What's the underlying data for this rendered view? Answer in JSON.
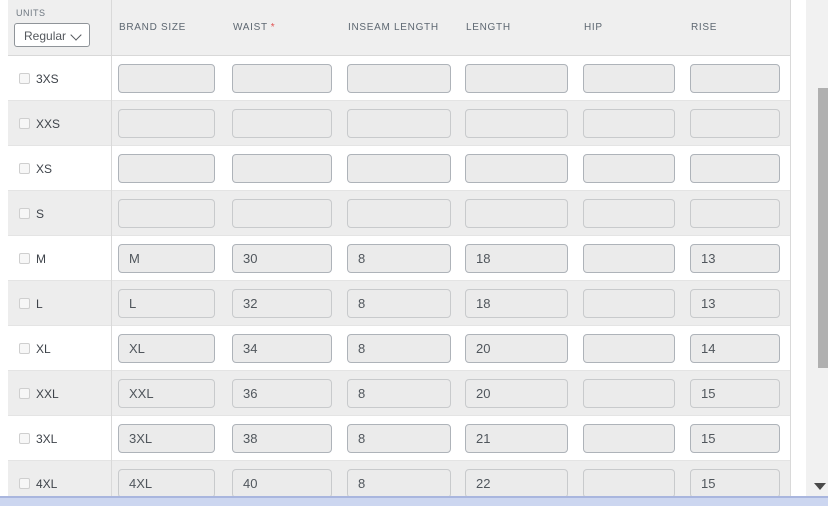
{
  "units": {
    "label": "UNITS",
    "selected": "Regular"
  },
  "columns": [
    {
      "label": "BRAND SIZE",
      "required": false
    },
    {
      "label": "WAIST",
      "required": true
    },
    {
      "label": "INSEAM LENGTH",
      "required": false
    },
    {
      "label": "LENGTH",
      "required": false
    },
    {
      "label": "HIP",
      "required": false
    },
    {
      "label": "RISE",
      "required": false
    }
  ],
  "required_marker": "*",
  "rows": [
    {
      "size": "3XS",
      "values": [
        "",
        "",
        "",
        "",
        "",
        ""
      ]
    },
    {
      "size": "XXS",
      "values": [
        "",
        "",
        "",
        "",
        "",
        ""
      ]
    },
    {
      "size": "XS",
      "values": [
        "",
        "",
        "",
        "",
        "",
        ""
      ]
    },
    {
      "size": "S",
      "values": [
        "",
        "",
        "",
        "",
        "",
        ""
      ]
    },
    {
      "size": "M",
      "values": [
        "M",
        "30",
        "8",
        "18",
        "",
        "13"
      ]
    },
    {
      "size": "L",
      "values": [
        "L",
        "32",
        "8",
        "18",
        "",
        "13"
      ]
    },
    {
      "size": "XL",
      "values": [
        "XL",
        "34",
        "8",
        "20",
        "",
        "14"
      ]
    },
    {
      "size": "XXL",
      "values": [
        "XXL",
        "36",
        "8",
        "20",
        "",
        "15"
      ]
    },
    {
      "size": "3XL",
      "values": [
        "3XL",
        "38",
        "8",
        "21",
        "",
        "15"
      ]
    },
    {
      "size": "4XL",
      "values": [
        "4XL",
        "40",
        "8",
        "22",
        "",
        "15"
      ]
    }
  ],
  "icons": {
    "dropdown_chevron": "chevron-down-icon",
    "corner_grip": "scroll-corner-arrow-icon"
  },
  "colors": {
    "required_star": "#e05252",
    "header_band": "#efefef",
    "row_even": "#ededed",
    "h_scrollbar": "#ccd6f0",
    "v_scroll_thumb": "#b0b0b0"
  }
}
